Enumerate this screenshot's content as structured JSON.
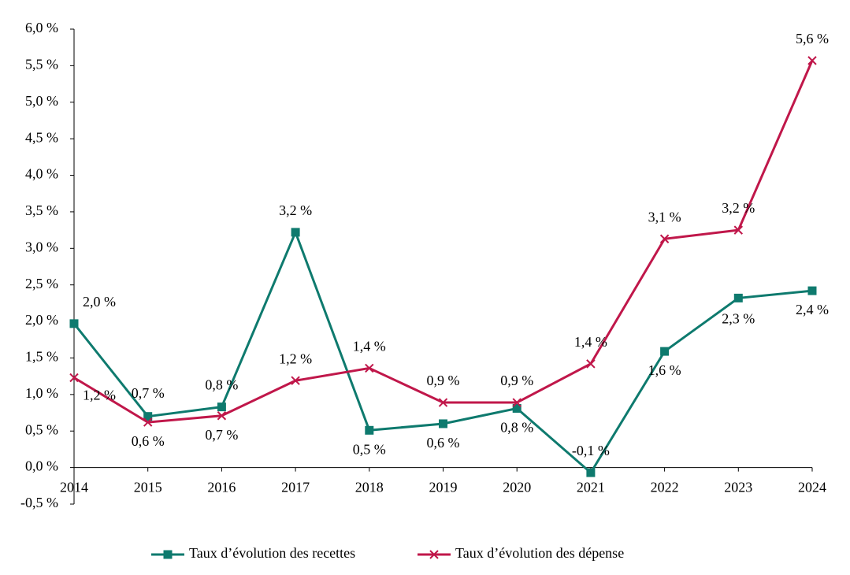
{
  "chart_data": {
    "type": "line",
    "categories": [
      "2014",
      "2015",
      "2016",
      "2017",
      "2018",
      "2019",
      "2020",
      "2021",
      "2022",
      "2023",
      "2024"
    ],
    "series": [
      {
        "name": "Taux d’évolution des recettes",
        "color": "#0e7a6e",
        "marker": "square",
        "values": [
          1.97,
          0.7,
          0.83,
          3.22,
          0.51,
          0.6,
          0.81,
          -0.07,
          1.59,
          2.32,
          2.42
        ],
        "value_labels": [
          "2,0 %",
          "0,7 %",
          "0,8 %",
          "3,2 %",
          "0,5 %",
          "0,6 %",
          "0,8 %",
          "-0,1 %",
          "1,6 %",
          "2,3 %",
          "2,4 %"
        ]
      },
      {
        "name": "Taux d’évolution des dépense",
        "color": "#c0174a",
        "marker": "x",
        "values": [
          1.23,
          0.62,
          0.71,
          1.19,
          1.36,
          0.89,
          0.89,
          1.42,
          3.13,
          3.25,
          5.57
        ],
        "value_labels": [
          "1,2 %",
          "0,6 %",
          "0,7 %",
          "1,2 %",
          "1,4 %",
          "0,9 %",
          "0,9 %",
          "1,4 %",
          "3,1 %",
          "3,2 %",
          "5,6 %"
        ]
      }
    ],
    "ylim": [
      -0.5,
      6.0
    ],
    "yticks": [
      {
        "value": -0.5,
        "label": "-0,5 %"
      },
      {
        "value": 0,
        "label": "0,0 %"
      },
      {
        "value": 0.5,
        "label": "0,5 %"
      },
      {
        "value": 1.0,
        "label": "1,0 %"
      },
      {
        "value": 1.5,
        "label": "1,5 %"
      },
      {
        "value": 2.0,
        "label": "2,0 %"
      },
      {
        "value": 2.5,
        "label": "2,5 %"
      },
      {
        "value": 3.0,
        "label": "3,0 %"
      },
      {
        "value": 3.5,
        "label": "3,5 %"
      },
      {
        "value": 4.0,
        "label": "4,0 %"
      },
      {
        "value": 4.5,
        "label": "4,5 %"
      },
      {
        "value": 5.0,
        "label": "5,0 %"
      },
      {
        "value": 5.5,
        "label": "5,5 %"
      },
      {
        "value": 6.0,
        "label": "6,0 %"
      }
    ],
    "grid": false,
    "legend": "bottom"
  }
}
